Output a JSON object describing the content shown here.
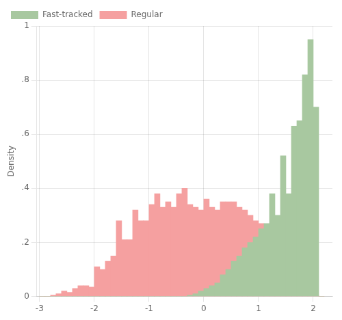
{
  "chart_data": {
    "type": "histogram",
    "ylabel": "Density",
    "xlim": [
      -3.05,
      2.35
    ],
    "ylim": [
      0,
      1.0
    ],
    "xticks": [
      -3,
      -2,
      -1,
      0,
      1,
      2
    ],
    "yticks": [
      0,
      {
        "value": 0.2,
        "label": ".2"
      },
      {
        "value": 0.4,
        "label": ".4"
      },
      {
        "value": 0.6,
        "label": ".6"
      },
      {
        "value": 0.8,
        "label": ".8"
      },
      1
    ],
    "grid": true,
    "legend": "upper left",
    "bins": [
      -3.0,
      -2.9,
      -2.8,
      -2.7,
      -2.6,
      -2.5,
      -2.4,
      -2.3,
      -2.2,
      -2.1,
      -2.0,
      -1.9,
      -1.8,
      -1.7,
      -1.6,
      -1.5,
      -1.4,
      -1.3,
      -1.2,
      -1.1,
      -1.0,
      -0.9,
      -0.8,
      -0.7,
      -0.6,
      -0.5,
      -0.4,
      -0.3,
      -0.2,
      -0.1,
      0.0,
      0.1,
      0.2,
      0.3,
      0.4,
      0.5,
      0.6,
      0.7,
      0.8,
      0.9,
      1.0,
      1.1,
      1.2,
      1.3,
      1.4,
      1.5,
      1.6,
      1.7,
      1.8,
      1.9,
      2.0,
      2.1,
      2.2
    ],
    "series": [
      {
        "name": "Regular",
        "color": "#F5A0A0",
        "values": [
          0.0,
          0.0,
          0.005,
          0.01,
          0.02,
          0.015,
          0.03,
          0.04,
          0.04,
          0.035,
          0.11,
          0.1,
          0.13,
          0.15,
          0.28,
          0.21,
          0.21,
          0.32,
          0.28,
          0.28,
          0.34,
          0.38,
          0.33,
          0.35,
          0.33,
          0.38,
          0.4,
          0.34,
          0.33,
          0.32,
          0.36,
          0.33,
          0.32,
          0.35,
          0.35,
          0.35,
          0.33,
          0.32,
          0.3,
          0.28,
          0.27,
          0.26,
          0.23,
          0.2,
          0.15,
          0.1,
          0.07,
          0.05,
          0.02,
          0.01,
          0.005,
          0.0
        ]
      },
      {
        "name": "Fast-tracked",
        "color": "#A8C8A0",
        "values": [
          0.0,
          0.0,
          0.0,
          0.0,
          0.0,
          0.0,
          0.0,
          0.0,
          0.0,
          0.0,
          0.0,
          0.0,
          0.0,
          0.0,
          0.0,
          0.0,
          0.0,
          0.0,
          0.0,
          0.0,
          0.0,
          0.0,
          0.0,
          0.0,
          0.0,
          0.0,
          0.0,
          0.005,
          0.01,
          0.02,
          0.03,
          0.04,
          0.05,
          0.08,
          0.1,
          0.13,
          0.15,
          0.18,
          0.2,
          0.22,
          0.25,
          0.27,
          0.38,
          0.3,
          0.52,
          0.38,
          0.63,
          0.65,
          0.82,
          0.95,
          0.7,
          0.0
        ]
      }
    ]
  }
}
